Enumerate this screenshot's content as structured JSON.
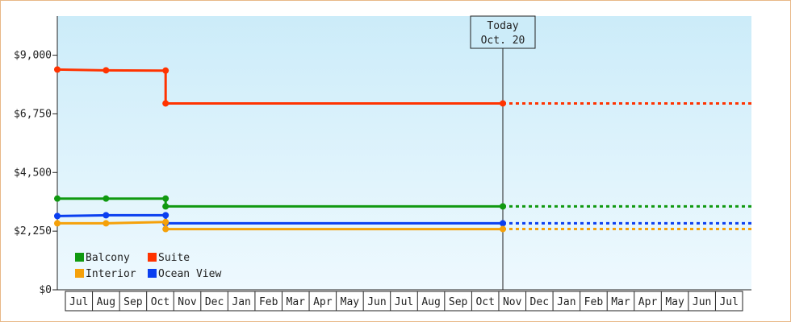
{
  "chart_data": {
    "type": "line",
    "subtype": "step",
    "y_ticks": [
      0,
      2250,
      4500,
      6750,
      9000
    ],
    "y_tick_labels": [
      "$0",
      "$2,250",
      "$4,500",
      "$6,750",
      "$9,000"
    ],
    "ylim": [
      0,
      10500
    ],
    "x_tick_labels": [
      "Jul",
      "Aug",
      "Sep",
      "Oct",
      "Nov",
      "Dec",
      "Jan",
      "Feb",
      "Mar",
      "Apr",
      "May",
      "Jun",
      "Jul",
      "Aug",
      "Sep",
      "Oct",
      "Nov",
      "Dec",
      "Jan",
      "Feb",
      "Mar",
      "Apr",
      "May",
      "Jun",
      "Jul"
    ],
    "x_unit": "month_index",
    "xlim": [
      -0.5,
      25
    ],
    "today": {
      "label": "Today",
      "date": "Oct. 20",
      "x": 15.65
    },
    "series": [
      {
        "name": "Suite",
        "color": "#ff3300",
        "points": [
          [
            -0.5,
            8450
          ],
          [
            1.0,
            8420
          ],
          [
            3.2,
            8410
          ],
          [
            3.2,
            7150
          ],
          [
            15.65,
            7150
          ]
        ],
        "projection": 7150
      },
      {
        "name": "Balcony",
        "color": "#109910",
        "points": [
          [
            -0.5,
            3500
          ],
          [
            1.0,
            3500
          ],
          [
            3.2,
            3500
          ],
          [
            3.2,
            3200
          ],
          [
            15.65,
            3200
          ]
        ],
        "projection": 3200
      },
      {
        "name": "Ocean View",
        "color": "#0a3ff0",
        "points": [
          [
            -0.5,
            2830
          ],
          [
            1.0,
            2860
          ],
          [
            3.2,
            2860
          ],
          [
            3.2,
            2550
          ],
          [
            15.65,
            2550
          ]
        ],
        "projection": 2550
      },
      {
        "name": "Interior",
        "color": "#f5a10a",
        "points": [
          [
            -0.5,
            2550
          ],
          [
            1.0,
            2550
          ],
          [
            3.2,
            2600
          ],
          [
            3.2,
            2330
          ],
          [
            15.65,
            2330
          ]
        ],
        "projection": 2330
      }
    ],
    "legend": {
      "placement": "bottom-left",
      "rows": [
        [
          "Balcony",
          "Suite"
        ],
        [
          "Interior",
          "Ocean View"
        ]
      ]
    },
    "grid": false
  }
}
